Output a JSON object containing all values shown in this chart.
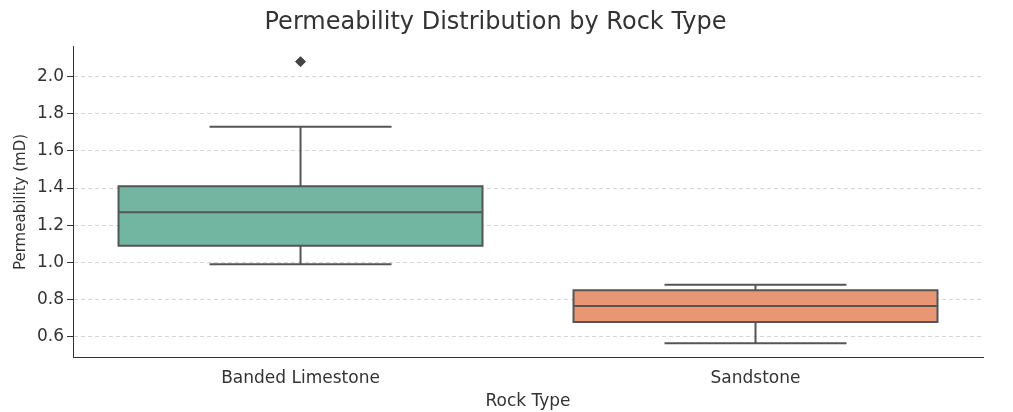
{
  "chart_data": {
    "type": "box",
    "title": "Permeability Distribution by Rock Type",
    "xlabel": "Rock Type",
    "ylabel": "Permeability (mD)",
    "categories": [
      "Banded Limestone",
      "Sandstone"
    ],
    "colors": [
      "#72b6a1",
      "#e99675"
    ],
    "boxes": [
      {
        "low": 0.99,
        "q1": 1.09,
        "median": 1.27,
        "q3": 1.41,
        "high": 1.73,
        "outliers": [
          2.08
        ]
      },
      {
        "low": 0.565,
        "q1": 0.68,
        "median": 0.765,
        "q3": 0.85,
        "high": 0.88
      }
    ],
    "ylim": [
      0.49,
      2.16
    ],
    "yticks": [
      0.6,
      0.8,
      {
        "value": 1,
        "label": "1.0"
      },
      1.2,
      1.4,
      1.6,
      1.8,
      {
        "value": 2,
        "label": "2.0"
      }
    ],
    "grid": "y",
    "legend": false,
    "marker": "diamond"
  }
}
